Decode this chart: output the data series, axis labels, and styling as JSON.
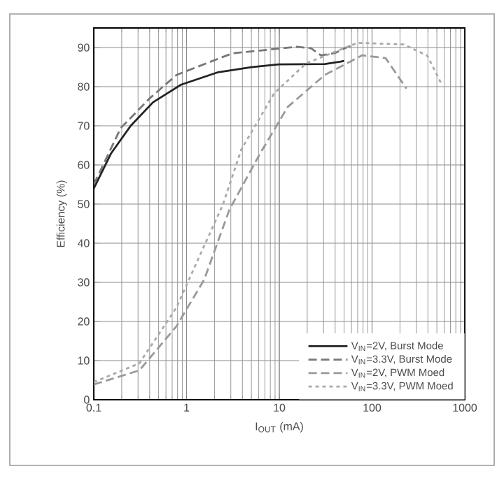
{
  "chart_data": {
    "type": "line",
    "xlabel": "I$_{OUT}$ (mA)",
    "ylabel": "Efficiency (%)",
    "log": "x",
    "xlim": [
      0.1,
      1000
    ],
    "ylim": [
      0,
      95
    ],
    "xticks": [
      0.1,
      1,
      10,
      100,
      1000
    ],
    "yticks": [
      0,
      10,
      20,
      30,
      40,
      50,
      60,
      70,
      80,
      90
    ],
    "grid": true,
    "legend": "bottom right",
    "marker": "none",
    "series": [
      {
        "name": "V$_{IN}$=2V, Burst Mode",
        "color": "#222222",
        "line_style": "solid",
        "x": [
          0.1,
          0.154,
          0.25,
          0.435,
          0.87,
          2.2,
          5,
          9.8,
          31,
          46,
          50
        ],
        "values": [
          54,
          63,
          70,
          76,
          80.5,
          83.7,
          85,
          85.7,
          85.8,
          86.4,
          86.6
        ]
      },
      {
        "name": "V$_{IN}$=3.3V, Burst Mode",
        "color": "#777777",
        "line_style": "dashed",
        "x": [
          0.1,
          0.195,
          0.4,
          0.78,
          3.1,
          15.5,
          22,
          28,
          40,
          55,
          60
        ],
        "values": [
          55,
          69.4,
          77,
          83,
          88.5,
          90.2,
          89.8,
          88,
          88.6,
          90.2,
          90.4
        ]
      },
      {
        "name": "V$_{IN}$=2V, PWM Moed",
        "color": "#999999",
        "line_style": "dashed",
        "x": [
          0.1,
          0.31,
          0.78,
          1.55,
          2.9,
          6.2,
          12.3,
          31,
          78,
          140,
          235
        ],
        "values": [
          3.9,
          7.5,
          18.8,
          30.7,
          48.6,
          62.9,
          74.8,
          83,
          88,
          87.3,
          79.5
        ]
      },
      {
        "name": "V$_{IN}$=3.3V, PWM Moed",
        "color": "#aaaaaa",
        "line_style": "dotted",
        "x": [
          0.1,
          0.31,
          0.78,
          1.38,
          2.46,
          3.9,
          8.8,
          19.6,
          70,
          220,
          395,
          560
        ],
        "values": [
          4.5,
          9.3,
          23.6,
          36.7,
          49.8,
          64,
          78.3,
          86,
          91.2,
          90.8,
          87.9,
          80.7
        ]
      }
    ]
  }
}
